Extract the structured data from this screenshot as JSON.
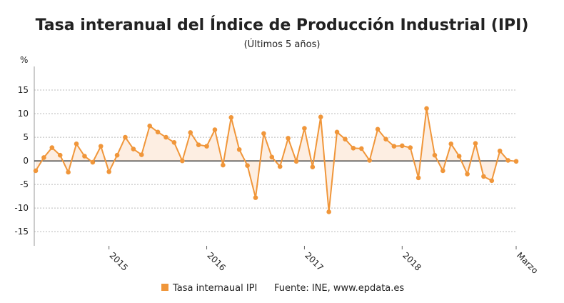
{
  "chart_data": {
    "type": "line",
    "title": "Tasa interanual del Índice de Producción Industrial (IPI)",
    "subtitle": "(Últimos 5 años)",
    "y_label": "%",
    "source": "Fuente: INE, www.epdata.es",
    "categories": [
      null,
      null,
      null,
      null,
      null,
      null,
      null,
      null,
      null,
      "2015",
      null,
      null,
      null,
      null,
      null,
      null,
      null,
      null,
      null,
      null,
      null,
      "2016",
      null,
      null,
      null,
      null,
      null,
      null,
      null,
      null,
      null,
      null,
      null,
      "2017",
      null,
      null,
      null,
      null,
      null,
      null,
      null,
      null,
      null,
      null,
      null,
      "2018",
      null,
      null,
      null,
      null,
      null,
      null,
      null,
      null,
      null,
      null,
      null,
      null,
      null,
      "Marzo"
    ],
    "series": [
      {
        "name": "Tasa internaual IPI",
        "color": "#f0963a",
        "values": [
          -2.1,
          0.7,
          2.8,
          1.2,
          -2.4,
          3.6,
          1.0,
          -0.3,
          3.1,
          -2.3,
          1.2,
          5.0,
          2.5,
          1.3,
          7.4,
          6.1,
          5.0,
          3.9,
          0.0,
          6.0,
          3.4,
          3.1,
          6.6,
          -0.9,
          9.2,
          2.4,
          -1.0,
          -7.8,
          5.8,
          0.8,
          -1.2,
          4.8,
          -0.1,
          6.9,
          -1.3,
          9.3,
          -10.8,
          6.1,
          4.6,
          2.7,
          2.6,
          0.1,
          6.7,
          4.6,
          3.1,
          3.2,
          2.8,
          -3.6,
          11.1,
          1.2,
          -2.1,
          3.6,
          1.0,
          -2.8,
          3.7,
          -3.3,
          -4.2,
          2.1,
          0.1,
          -0.1
        ]
      }
    ],
    "ylim": [
      -18,
      20
    ],
    "yticks": [
      -15,
      -10,
      -5,
      0,
      5,
      10,
      15
    ],
    "grid": true,
    "area_fill": "#fdeee2"
  }
}
